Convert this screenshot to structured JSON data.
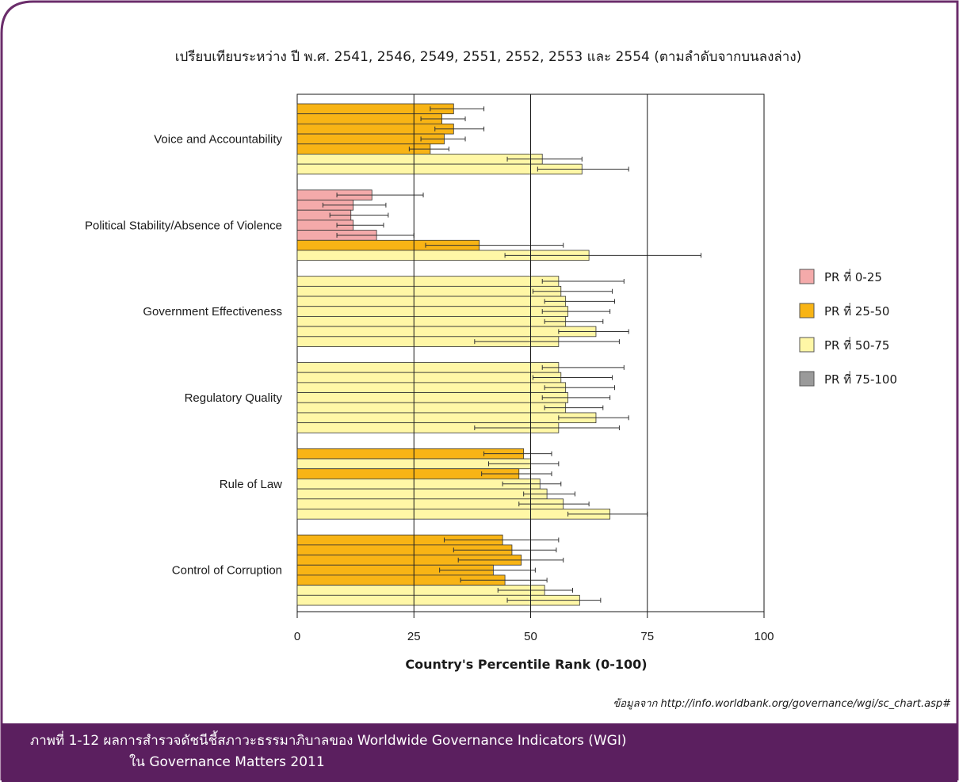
{
  "chart_data": {
    "type": "bar",
    "orientation": "horizontal",
    "subtitle": "เปรียบเทียบระหว่าง ปี พ.ศ. 2541, 2546, 2549, 2551, 2552, 2553 และ 2554 (ตามลำดับจากบนลงล่าง)",
    "xlabel": "Country's Percentile Rank (0-100)",
    "xlim": [
      0,
      100
    ],
    "xticks": [
      "0",
      "25",
      "50",
      "75",
      "100"
    ],
    "grid": "vertical lines at 50 and 75",
    "legend_position": "right",
    "legend": [
      {
        "label": "PR ที่ 0-25",
        "color": "#f4aaaa"
      },
      {
        "label": "PR ที่ 25-50",
        "color": "#f8b415"
      },
      {
        "label": "PR ที่ 50-75",
        "color": "#fff7a6"
      },
      {
        "label": "PR ที่ 75-100",
        "color": "#9a9a9a"
      }
    ],
    "bar_order_note": "",
    "categories": [
      {
        "name": "Voice and Accountability",
        "values": [
          33.5,
          31,
          33.5,
          31.5,
          28.5,
          52.5,
          61
        ],
        "err_low": [
          28.5,
          26.5,
          29.5,
          26.5,
          24,
          45,
          51.5
        ],
        "err_high": [
          40,
          36,
          40,
          36,
          32.5,
          61,
          71
        ]
      },
      {
        "name": "Political Stability/Absence of Violence",
        "values": [
          16,
          12,
          11.5,
          12,
          17,
          39,
          62.5
        ],
        "err_low": [
          8.5,
          5.5,
          7,
          8.5,
          8.5,
          27.5,
          44.5
        ],
        "err_high": [
          27,
          19,
          19.5,
          18.5,
          25,
          57,
          86.5
        ]
      },
      {
        "name": "Government Effectiveness",
        "values": [
          56,
          56.5,
          57.5,
          58,
          57.5,
          64,
          56
        ],
        "err_low": [
          52.5,
          50.5,
          53,
          52.5,
          53,
          56,
          38
        ],
        "err_high": [
          70,
          67.5,
          68,
          67,
          65.5,
          71,
          69
        ]
      },
      {
        "name": "Regulatory Quality",
        "values": [
          56,
          56.5,
          57.5,
          58,
          57.5,
          64,
          56
        ],
        "err_low": [
          52.5,
          50.5,
          53,
          52.5,
          53,
          56,
          38
        ],
        "err_high": [
          70,
          67.5,
          68,
          67,
          65.5,
          71,
          69
        ]
      },
      {
        "name": "Rule of Law",
        "values": [
          48.5,
          50,
          47.5,
          52,
          53.5,
          57,
          67
        ],
        "err_low": [
          40,
          41,
          39.5,
          44,
          48.5,
          47.5,
          58
        ],
        "err_high": [
          54.5,
          56,
          54.5,
          56.5,
          59.5,
          62.5,
          75
        ]
      },
      {
        "name": "Control of Corruption",
        "values": [
          44,
          46,
          48,
          42,
          44.5,
          53,
          60.5
        ],
        "err_low": [
          31.5,
          33.5,
          34.5,
          30.5,
          35,
          43,
          45
        ],
        "err_high": [
          56,
          55.5,
          57,
          51,
          53.5,
          59,
          65
        ]
      }
    ]
  },
  "source_note": "ข้อมูลจาก http://info.worldbank.org/governance/wgi/sc_chart.asp#",
  "caption": {
    "line1": "ภาพที่ 1-12  ผลการสำรวจดัชนีชี้สภาวะธรรมาภิบาลของ Worldwide Governance Indicators (WGI)",
    "line2": "ใน Governance Matters 2011"
  },
  "colors": {
    "frame_border": "#6b2d6b",
    "caption_bg": "#5b1f5f",
    "error_bar": "#333333"
  }
}
